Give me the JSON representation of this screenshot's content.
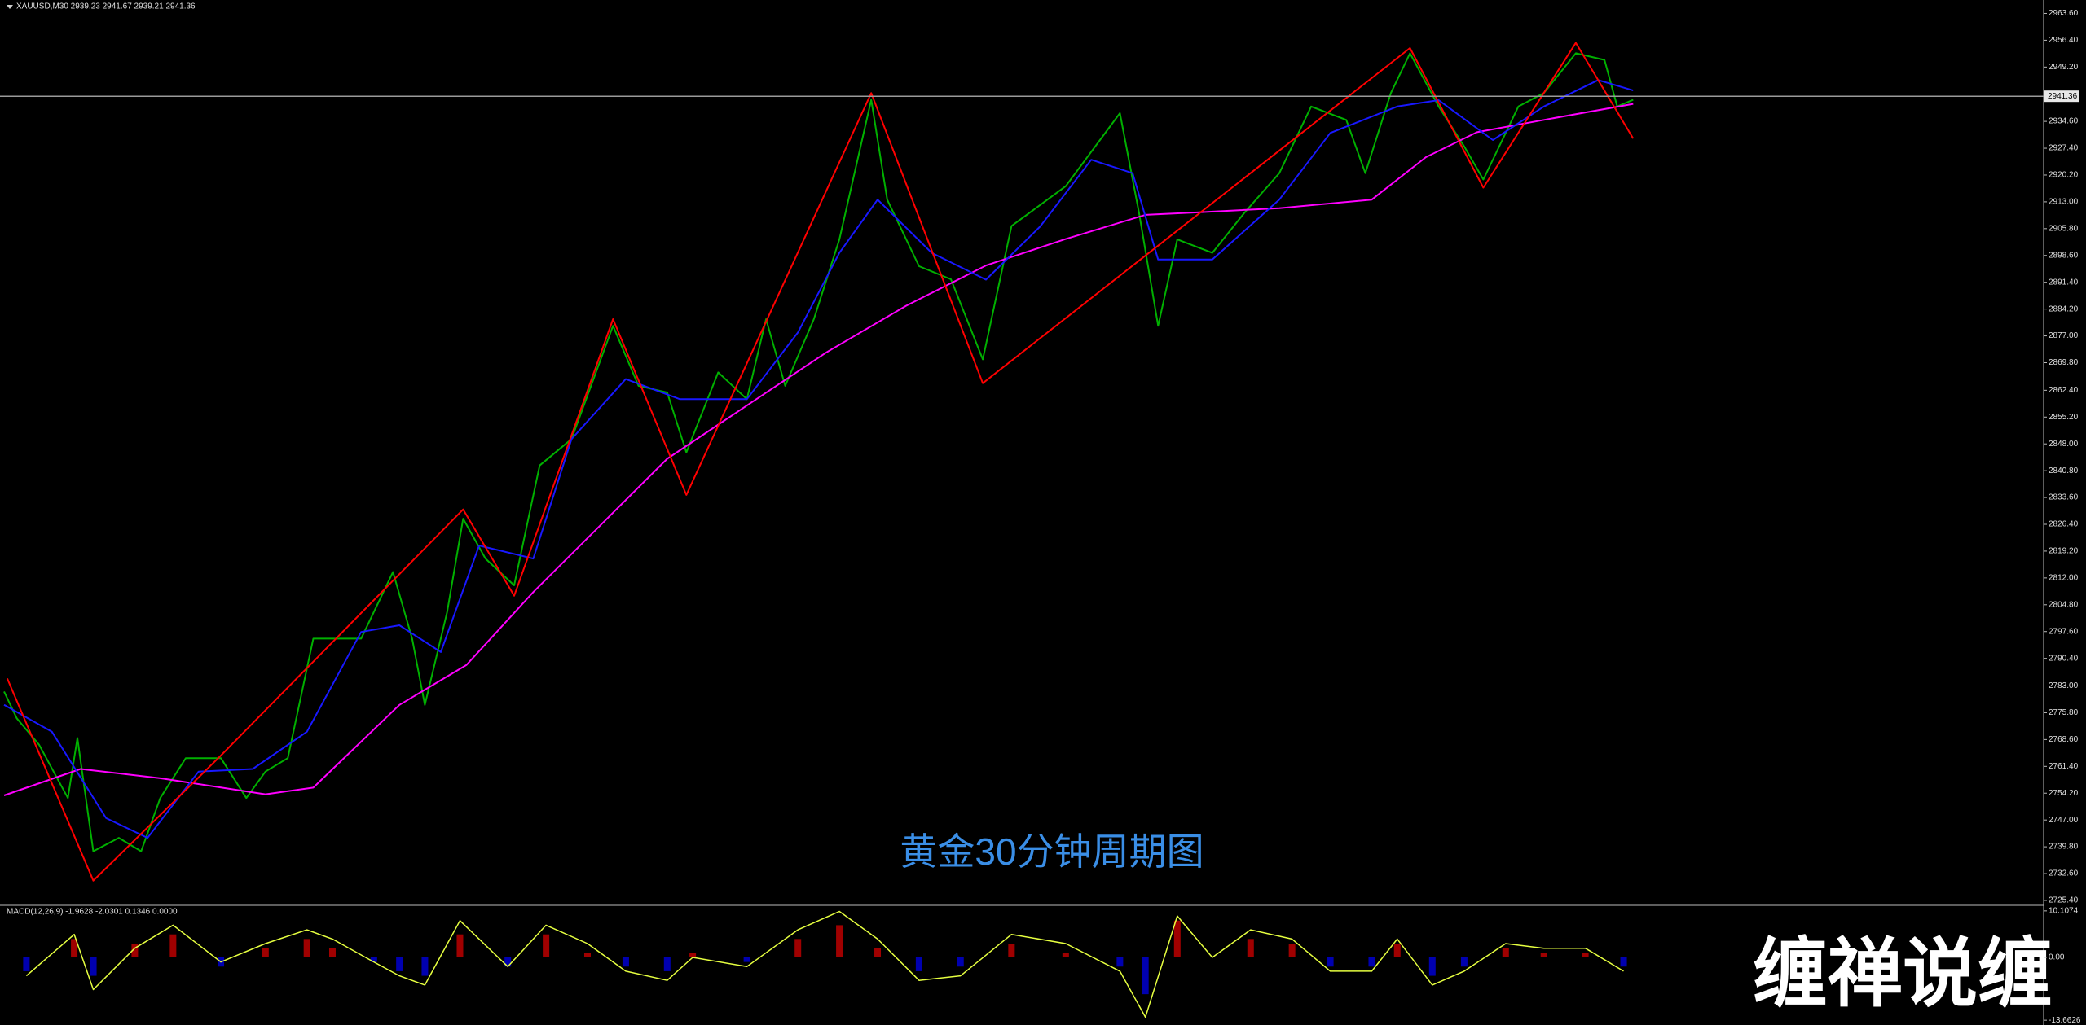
{
  "chart_data": [
    {
      "type": "line",
      "title": "XAUUSD,M30  2939.23 2941.67 2939.21 2941.36",
      "annotation": "黄金30分钟周期图",
      "xlim": [
        0,
        640
      ],
      "ylim": [
        2724.3,
        2967.2
      ],
      "yticks": [
        {
          "value": 2963.6,
          "label": "2963.60"
        },
        {
          "value": 2956.4,
          "label": "2956.40"
        },
        {
          "value": 2949.2,
          "label": "2949.20"
        },
        {
          "value": 2934.6,
          "label": "2934.60"
        },
        {
          "value": 2927.4,
          "label": "2927.40"
        },
        {
          "value": 2920.2,
          "label": "2920.20"
        },
        {
          "value": 2913,
          "label": "2913.00"
        },
        {
          "value": 2905.8,
          "label": "2905.80"
        },
        {
          "value": 2898.6,
          "label": "2898.60"
        },
        {
          "value": 2891.4,
          "label": "2891.40"
        },
        {
          "value": 2884.2,
          "label": "2884.20"
        },
        {
          "value": 2877,
          "label": "2877.00"
        },
        {
          "value": 2869.8,
          "label": "2869.80"
        },
        {
          "value": 2862.4,
          "label": "2862.40"
        },
        {
          "value": 2855.2,
          "label": "2855.20"
        },
        {
          "value": 2848,
          "label": "2848.00"
        },
        {
          "value": 2840.8,
          "label": "2840.80"
        },
        {
          "value": 2833.6,
          "label": "2833.60"
        },
        {
          "value": 2826.4,
          "label": "2826.40"
        },
        {
          "value": 2819.2,
          "label": "2819.20"
        },
        {
          "value": 2812,
          "label": "2812.00"
        },
        {
          "value": 2804.8,
          "label": "2804.80"
        },
        {
          "value": 2797.6,
          "label": "2797.60"
        },
        {
          "value": 2790.4,
          "label": "2790.40"
        },
        {
          "value": 2783,
          "label": "2783.00"
        },
        {
          "value": 2775.8,
          "label": "2775.80"
        },
        {
          "value": 2768.6,
          "label": "2768.60"
        },
        {
          "value": 2761.4,
          "label": "2761.40"
        },
        {
          "value": 2754.2,
          "label": "2754.20"
        },
        {
          "value": 2747,
          "label": "2747.00"
        },
        {
          "value": 2739.8,
          "label": "2739.80"
        },
        {
          "value": 2732.6,
          "label": "2732.60"
        },
        {
          "value": 2725.4,
          "label": "2725.40"
        }
      ],
      "last_price": {
        "value": 2941.36,
        "label": "2941.36"
      },
      "series": [
        {
          "color": "#00b000",
          "width": 2,
          "x": [
            0,
            4,
            11,
            20,
            23,
            28,
            36,
            43,
            49,
            57,
            68,
            76,
            82,
            89,
            97,
            112,
            122,
            128,
            132,
            139,
            144,
            151,
            160,
            168,
            178,
            191,
            199,
            208,
            214,
            224,
            233,
            239,
            245,
            254,
            262,
            272,
            277,
            287,
            297,
            307,
            316,
            333,
            350,
            356,
            362,
            368,
            379,
            389,
            400,
            410,
            421,
            427,
            435,
            441,
            450,
            458,
            464,
            475,
            483,
            493,
            502,
            506,
            511
          ],
          "values": [
            2781.5,
            2774.3,
            2767.2,
            2752.9,
            2769.0,
            2738.6,
            2742.2,
            2738.6,
            2752.9,
            2763.6,
            2763.6,
            2752.9,
            2760.0,
            2763.6,
            2795.7,
            2795.7,
            2813.6,
            2795.7,
            2777.9,
            2802.9,
            2827.9,
            2817.2,
            2810.0,
            2842.2,
            2849.3,
            2879.7,
            2863.6,
            2861.8,
            2845.7,
            2867.2,
            2860.0,
            2881.5,
            2863.6,
            2881.5,
            2902.9,
            2940.4,
            2913.6,
            2895.7,
            2892.2,
            2870.7,
            2906.5,
            2917.2,
            2936.8,
            2910.0,
            2879.7,
            2902.9,
            2899.3,
            2910.0,
            2920.7,
            2938.6,
            2935.0,
            2920.7,
            2942.2,
            2952.9,
            2938.6,
            2927.9,
            2919.0,
            2938.6,
            2942.2,
            2952.9,
            2951.1,
            2938.6,
            2940.4
          ]
        },
        {
          "color": "#ff00ff",
          "width": 2,
          "x": [
            0,
            24,
            49,
            82,
            97,
            124,
            145,
            166,
            187,
            208,
            233,
            258,
            283,
            308,
            333,
            358,
            375,
            400,
            429,
            446,
            462,
            483,
            511
          ],
          "values": [
            2753.6,
            2760.7,
            2758.2,
            2753.9,
            2755.7,
            2777.9,
            2788.6,
            2808.2,
            2826.1,
            2844.0,
            2858.3,
            2872.6,
            2885.1,
            2895.9,
            2903.0,
            2909.5,
            2910.2,
            2911.3,
            2913.6,
            2925.0,
            2931.7,
            2935.0,
            2939.3
          ]
        },
        {
          "color": "#1818ff",
          "width": 2,
          "x": [
            0,
            15,
            32,
            45,
            61,
            78,
            95,
            112,
            124,
            137,
            149,
            166,
            178,
            195,
            212,
            233,
            249,
            262,
            274,
            291,
            308,
            325,
            341,
            354,
            362,
            379,
            400,
            416,
            437,
            450,
            467,
            483,
            500,
            511
          ],
          "values": [
            2777.9,
            2770.7,
            2747.5,
            2742.2,
            2760.0,
            2760.7,
            2770.7,
            2797.5,
            2799.3,
            2792.1,
            2820.7,
            2817.2,
            2849.3,
            2865.4,
            2860.0,
            2860.0,
            2877.9,
            2899.3,
            2913.6,
            2899.3,
            2892.1,
            2906.4,
            2924.3,
            2920.7,
            2897.5,
            2897.5,
            2913.6,
            2931.5,
            2938.6,
            2940.3,
            2929.6,
            2938.6,
            2945.7,
            2942.9
          ]
        },
        {
          "color": "#ff0000",
          "width": 2,
          "x": [
            1,
            28,
            68,
            144,
            160,
            191,
            214,
            272,
            307,
            441,
            464,
            493,
            511
          ],
          "values": [
            2785.0,
            2730.7,
            2764.3,
            2830.4,
            2807.2,
            2881.5,
            2834.3,
            2942.2,
            2864.3,
            2954.3,
            2916.8,
            2955.7,
            2930.0
          ]
        }
      ]
    },
    {
      "type": "macd",
      "title": "MACD(12,26,9) -1.9628 -2.0301 0.1346 0.0000",
      "xlim": [
        0,
        640
      ],
      "ylim": [
        -14.7,
        11.5
      ],
      "yticks": [
        {
          "value": 10.1074,
          "label": "10.1074"
        },
        {
          "value": 0,
          "label": "0.00"
        },
        {
          "value": -13.6626,
          "label": "-13.6626"
        }
      ],
      "x": [
        7,
        22,
        28,
        41,
        53,
        68,
        82,
        95,
        103,
        116,
        124,
        132,
        143,
        158,
        170,
        183,
        195,
        208,
        216,
        233,
        249,
        262,
        274,
        287,
        300,
        316,
        333,
        350,
        358,
        368,
        379,
        391,
        404,
        416,
        429,
        437,
        448,
        458,
        471,
        483,
        496,
        508
      ],
      "series": [
        {
          "type": "bar",
          "color": "#a00000",
          "negative_color": "#0000b0",
          "values": [
            -3,
            4,
            -4,
            3,
            5,
            -2,
            2,
            4,
            2,
            -1,
            -3,
            -4,
            5,
            -2,
            5,
            1,
            -2,
            -3,
            1,
            -1,
            4,
            7,
            2,
            -3,
            -2,
            3,
            1,
            -2,
            -8,
            8,
            0,
            4,
            3,
            -2,
            -2,
            3,
            -4,
            -2,
            2,
            1,
            1,
            -2
          ]
        },
        {
          "type": "line",
          "color": "#e6ff40",
          "values": [
            -4,
            5,
            -7,
            2,
            7,
            -1,
            3,
            6,
            4,
            -1,
            -4,
            -6,
            8,
            -2,
            7,
            3,
            -3,
            -5,
            0,
            -2,
            6,
            10,
            4,
            -5,
            -4,
            5,
            3,
            -3,
            -13,
            9,
            0,
            6,
            4,
            -3,
            -3,
            4,
            -6,
            -3,
            3,
            2,
            2,
            -3
          ]
        }
      ]
    }
  ],
  "watermark": "缠禅说缠"
}
